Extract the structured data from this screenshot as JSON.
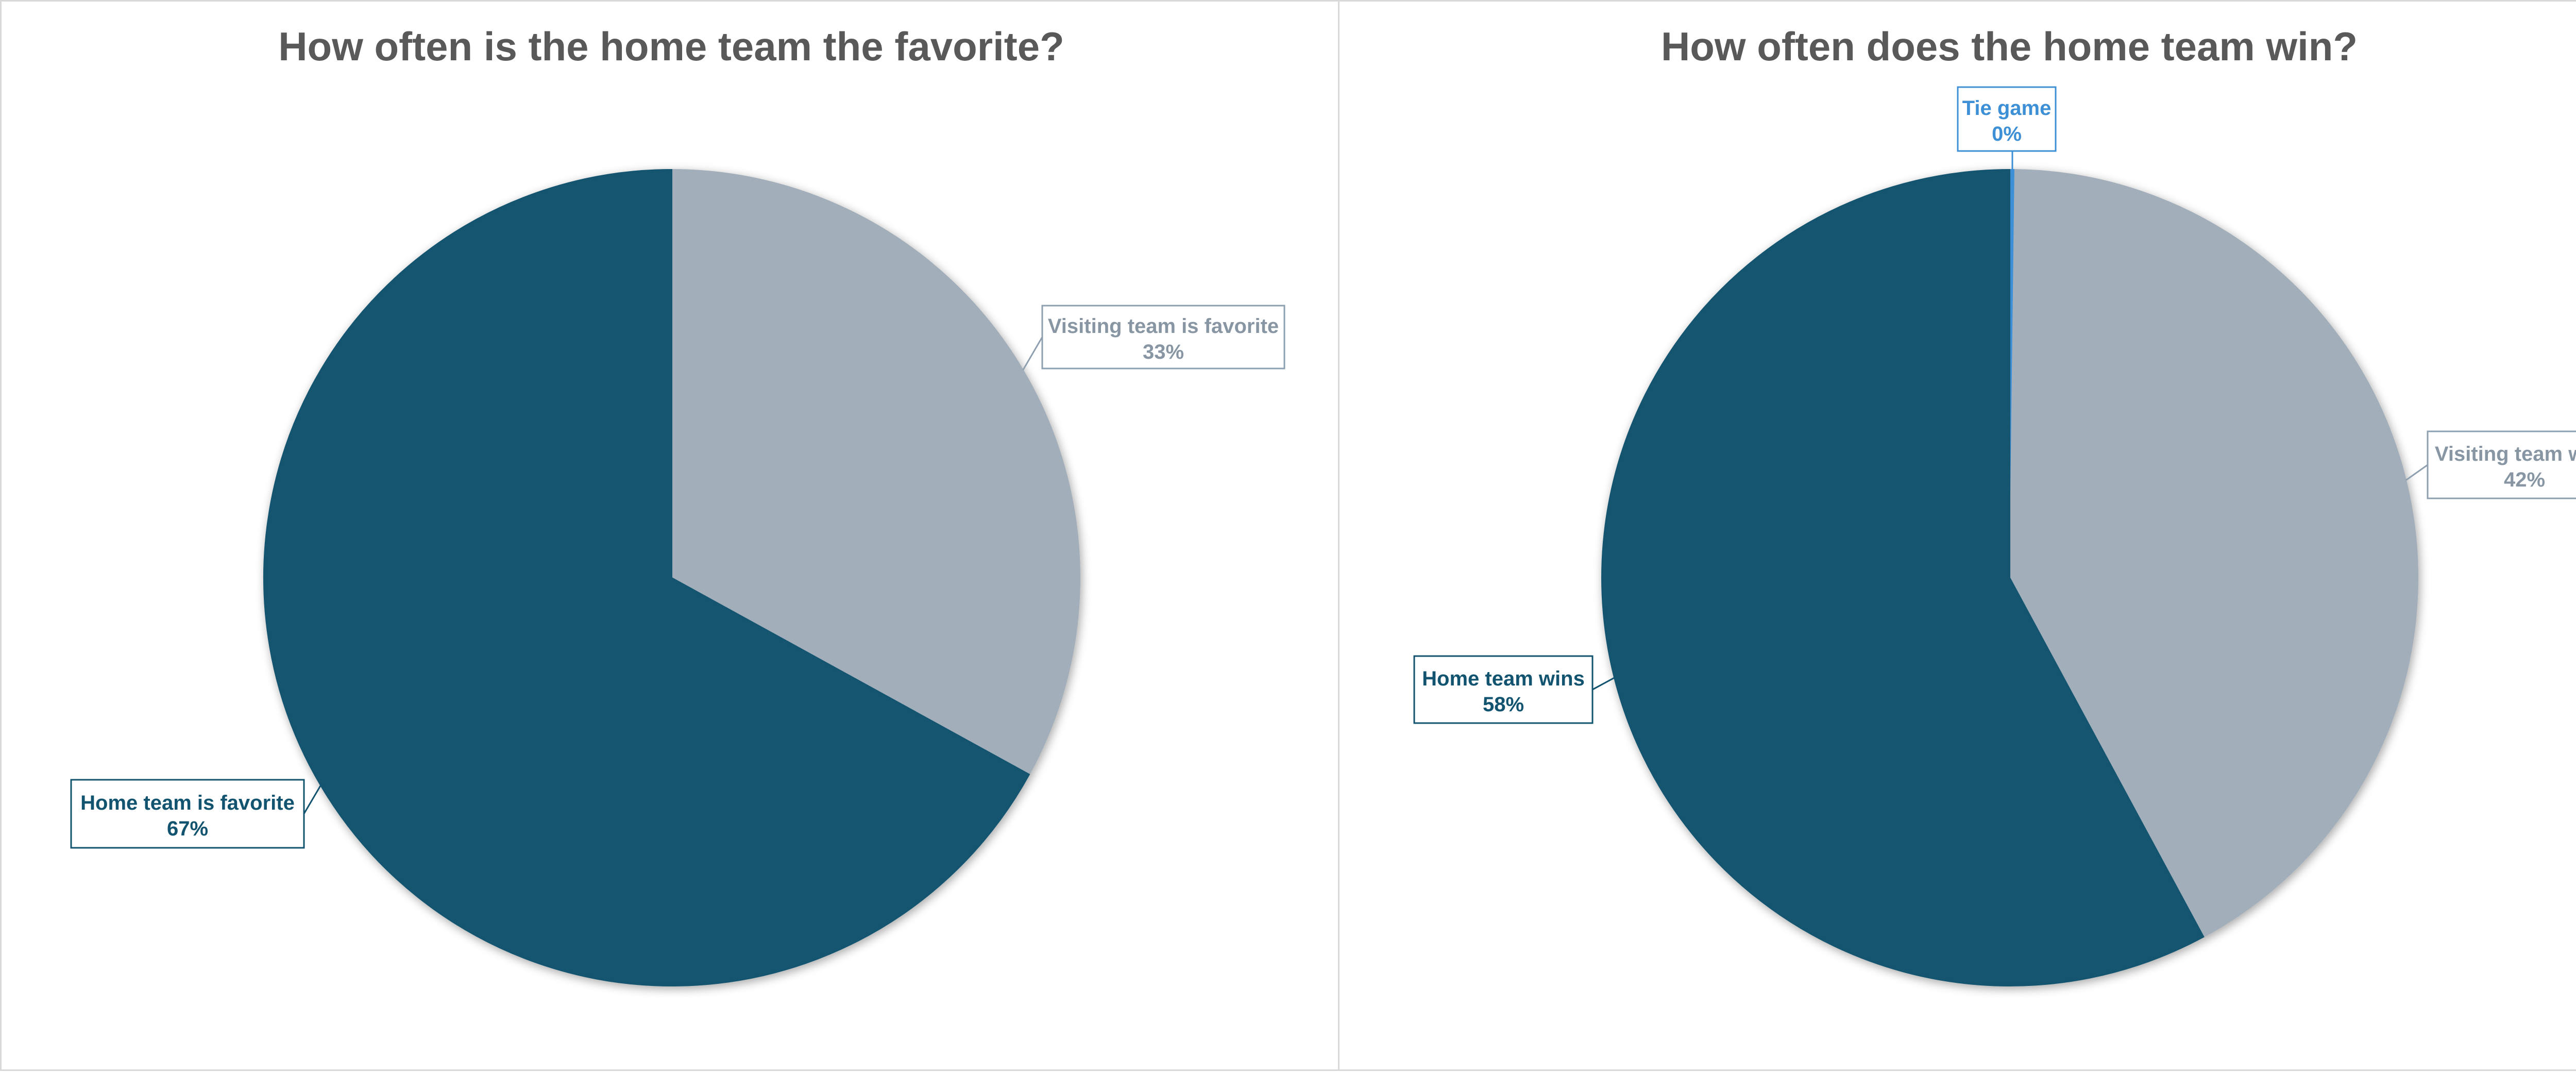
{
  "chart_data": [
    {
      "type": "pie",
      "title": "How often is the home team the favorite?",
      "slices": [
        {
          "name": "Visiting team is favorite",
          "value": 33,
          "value_label": "33%",
          "color": "#a2aeb9"
        },
        {
          "name": "Home team is favorite",
          "value": 67,
          "value_label": "67%",
          "color": "#125470"
        }
      ],
      "legend": "none",
      "data_labels": "callouts with category name and percentage"
    },
    {
      "type": "pie",
      "title": "How often does the home team win?",
      "slices": [
        {
          "name": "Tie game",
          "value": 0.2,
          "value_label": "0%",
          "color": "#3d8fd6"
        },
        {
          "name": "Visiting team wins",
          "value": 42,
          "value_label": "42%",
          "color": "#a2aeb9"
        },
        {
          "name": "Home team wins",
          "value": 58,
          "value_label": "58%",
          "color": "#125470"
        }
      ],
      "legend": "none",
      "data_labels": "callouts with category name and percentage"
    }
  ]
}
